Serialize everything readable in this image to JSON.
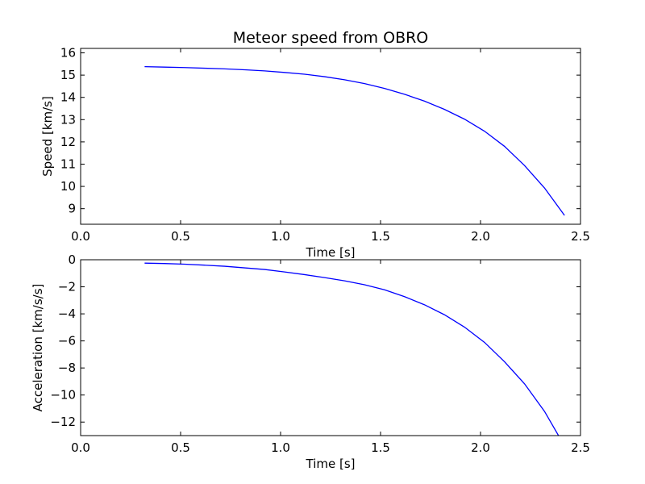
{
  "figure": {
    "title": "Meteor speed from  OBRO"
  },
  "chart_data": [
    {
      "type": "line",
      "title": "Meteor speed from  OBRO",
      "xlabel": "Time [s]",
      "ylabel": "Speed [km/s]",
      "xlim": [
        0.0,
        2.5
      ],
      "ylim": [
        8.3,
        16.2
      ],
      "xticks": [
        "0.0",
        "0.5",
        "1.0",
        "1.5",
        "2.0",
        "2.5"
      ],
      "yticks": [
        "9",
        "10",
        "11",
        "12",
        "13",
        "14",
        "15",
        "16"
      ],
      "grid": false,
      "color": "#0000ff",
      "series": [
        {
          "x": [
            0.32,
            0.42,
            0.52,
            0.62,
            0.72,
            0.82,
            0.92,
            1.02,
            1.12,
            1.22,
            1.32,
            1.42,
            1.52,
            1.62,
            1.72,
            1.82,
            1.92,
            2.02,
            2.12,
            2.22,
            2.32,
            2.42
          ],
          "y": [
            15.38,
            15.36,
            15.34,
            15.31,
            15.28,
            15.24,
            15.19,
            15.12,
            15.04,
            14.93,
            14.79,
            14.62,
            14.4,
            14.14,
            13.83,
            13.46,
            13.02,
            12.48,
            11.8,
            10.94,
            9.93,
            8.7
          ]
        }
      ]
    },
    {
      "type": "line",
      "title": "",
      "xlabel": "Time [s]",
      "ylabel": "Acceleration [km/s/s]",
      "xlim": [
        0.0,
        2.5
      ],
      "ylim": [
        -13.0,
        0.0
      ],
      "xticks": [
        "0.0",
        "0.5",
        "1.0",
        "1.5",
        "2.0",
        "2.5"
      ],
      "yticks": [
        "0",
        "−2",
        "−4",
        "−6",
        "−8",
        "−10",
        "−12"
      ],
      "grid": false,
      "color": "#0000ff",
      "series": [
        {
          "x": [
            0.32,
            0.42,
            0.52,
            0.62,
            0.72,
            0.82,
            0.92,
            1.02,
            1.12,
            1.22,
            1.32,
            1.42,
            1.52,
            1.62,
            1.72,
            1.82,
            1.92,
            2.02,
            2.12,
            2.22,
            2.32,
            2.39
          ],
          "y": [
            -0.25,
            -0.28,
            -0.33,
            -0.4,
            -0.48,
            -0.6,
            -0.72,
            -0.9,
            -1.1,
            -1.32,
            -1.56,
            -1.85,
            -2.22,
            -2.73,
            -3.33,
            -4.07,
            -4.98,
            -6.11,
            -7.54,
            -9.17,
            -11.21,
            -13.0
          ]
        }
      ]
    }
  ]
}
